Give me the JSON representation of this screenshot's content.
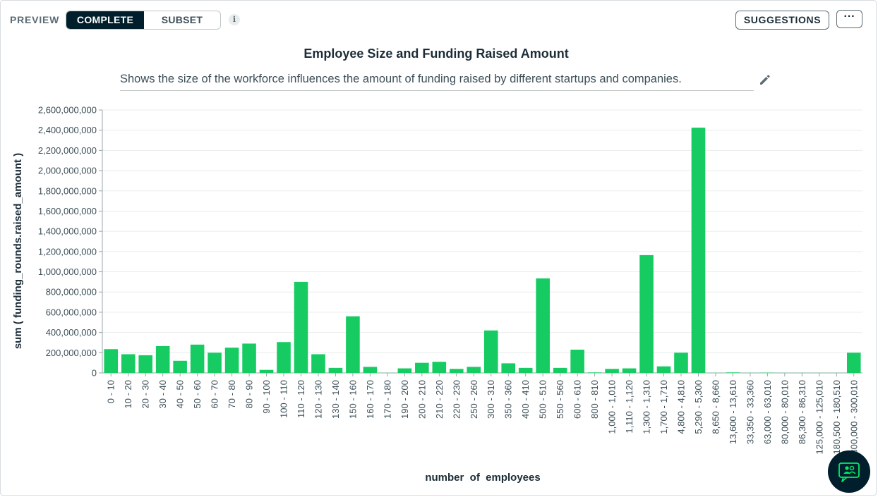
{
  "toolbar": {
    "preview_label": "PREVIEW",
    "mode_complete": "COMPLETE",
    "mode_subset": "SUBSET",
    "info_glyph": "i",
    "suggestions_label": "SUGGESTIONS",
    "more_glyph": "···"
  },
  "chart": {
    "title": "Employee Size and Funding Raised Amount",
    "description": "Shows the size of the workforce influences the amount of funding raised by different startups and companies."
  },
  "colors": {
    "bar": "#16cc62",
    "dark": "#001e2b",
    "grid": "#e8edeb"
  },
  "icons": [
    "info-icon",
    "more-options-icon",
    "pencil-icon",
    "chat-assistant-icon"
  ],
  "chart_data": {
    "type": "bar",
    "xlabel": "number  of  employees",
    "ylabel": "sum ( funding_rounds.raised_amount )",
    "ylim": [
      0,
      2600000000
    ],
    "yticks": [
      0,
      200000000,
      400000000,
      600000000,
      800000000,
      1000000000,
      1200000000,
      1400000000,
      1600000000,
      1800000000,
      2000000000,
      2200000000,
      2400000000,
      2600000000
    ],
    "ytick_labels": [
      "0",
      "200,000,000",
      "400,000,000",
      "600,000,000",
      "800,000,000",
      "1,000,000,000",
      "1,200,000,000",
      "1,400,000,000",
      "1,600,000,000",
      "1,800,000,000",
      "2,000,000,000",
      "2,200,000,000",
      "2,400,000,000",
      "2,600,000,000"
    ],
    "grid": true,
    "categories": [
      "0 - 10",
      "10 - 20",
      "20 - 30",
      "30 - 40",
      "40 - 50",
      "50 - 60",
      "60 - 70",
      "70 - 80",
      "80 - 90",
      "90 - 100",
      "100 - 110",
      "110 - 120",
      "120 - 130",
      "130 - 140",
      "150 - 160",
      "160 - 170",
      "170 - 180",
      "190 - 200",
      "200 - 210",
      "210 - 220",
      "220 - 230",
      "250 - 260",
      "300 - 310",
      "350 - 360",
      "400 - 410",
      "500 - 510",
      "550 - 560",
      "600 - 610",
      "800 - 810",
      "1,000 - 1,010",
      "1,110 - 1,120",
      "1,300 - 1,310",
      "1,700 - 1,710",
      "4,800 - 4,810",
      "5,290 - 5,300",
      "8,650 - 8,660",
      "13,600 - 13,610",
      "33,350 - 33,360",
      "63,000 - 63,010",
      "80,000 - 80,010",
      "86,300 - 86,310",
      "125,000 - 125,010",
      "180,500 - 180,510",
      "300,000 - 300,010"
    ],
    "values": [
      235000000,
      185000000,
      175000000,
      265000000,
      120000000,
      280000000,
      200000000,
      250000000,
      290000000,
      30000000,
      305000000,
      900000000,
      185000000,
      50000000,
      560000000,
      60000000,
      1000000,
      45000000,
      100000000,
      110000000,
      40000000,
      60000000,
      420000000,
      95000000,
      50000000,
      935000000,
      50000000,
      230000000,
      5000000,
      40000000,
      45000000,
      1165000000,
      65000000,
      200000000,
      2425000000,
      1000000,
      5000000,
      1000000,
      3000000,
      1000000,
      1000000,
      1000000,
      1000000,
      200000000
    ]
  }
}
